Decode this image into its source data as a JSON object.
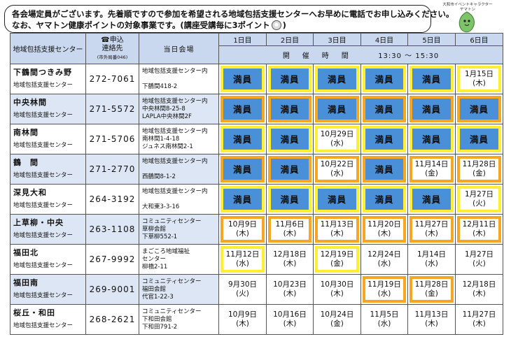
{
  "notice": {
    "line1": "各会場定員がございます。先着順ですので参加を希望される地域包括支援センターへお早めに電話でお申し込みください。",
    "line2": "なお、ヤマトン健康ポイントの対象事業です。(講座受講毎に3ポイント",
    "line2_end": ")"
  },
  "mascot": {
    "caption_line1": "大和市イベントキャラクター",
    "caption_line2": "ヤマトン"
  },
  "header": {
    "area": "地域包括支援センター",
    "contact_line1": "☎申込",
    "contact_line2": "連絡先",
    "contact_line3": "(市外局番046)",
    "venue": "当日会場",
    "days": [
      "1日目",
      "2日目",
      "3日目",
      "4日目",
      "5日目",
      "6日目"
    ],
    "time_label": "開　催　時　間",
    "time_value": "13:30 ～ 15:30"
  },
  "rows": [
    {
      "name": "下鶴間つきみ野",
      "sub": "地域包括支援センター",
      "tel": "272-7061",
      "venue": [
        "地域包括支援センター内",
        "",
        "下鶴間418-2"
      ],
      "cells": [
        {
          "t": "満員",
          "s": "full-y"
        },
        {
          "t": "満員",
          "s": "full-y"
        },
        {
          "t": "満員",
          "s": "full-y"
        },
        {
          "t": "満員",
          "s": "full-y"
        },
        {
          "t": "満員",
          "s": "full-y"
        },
        {
          "t": "1月15日",
          "t2": "(木)",
          "s": "date-y"
        }
      ]
    },
    {
      "name": "中央林間",
      "sub": "地域包括支援センター",
      "tel": "271-5572",
      "venue": [
        "地域包括支援センター内",
        "中央林間8-25-8",
        "LAPLA中央林間2F"
      ],
      "cells": [
        {
          "t": "満員",
          "s": "full-o"
        },
        {
          "t": "満員",
          "s": "full-o"
        },
        {
          "t": "満員",
          "s": "full-o"
        },
        {
          "t": "満員",
          "s": "full-o"
        },
        {
          "t": "満員",
          "s": "full-o"
        },
        {
          "t": "満員",
          "s": "full-o"
        }
      ]
    },
    {
      "name": "南林間",
      "sub": "地域包括支援センター",
      "tel": "271-5706",
      "venue": [
        "地域包括支援センター内",
        "南林間1-4-18",
        "ジュネス南林間2-1"
      ],
      "cells": [
        {
          "t": "満員",
          "s": "full-y"
        },
        {
          "t": "満員",
          "s": "full-y"
        },
        {
          "t": "10月29日",
          "t2": "(水)",
          "s": "date-y"
        },
        {
          "t": "満員",
          "s": "full-y"
        },
        {
          "t": "満員",
          "s": "full-y"
        },
        {
          "t": "満員",
          "s": "full-y"
        }
      ]
    },
    {
      "name": "鶴　間",
      "sub": "地域包括支援センター",
      "tel": "271-2770",
      "venue": [
        "地域包括支援センター内",
        "",
        "西鶴間8-1-2"
      ],
      "cells": [
        {
          "t": "満員",
          "s": "full-o"
        },
        {
          "t": "満員",
          "s": "full-o"
        },
        {
          "t": "10月22日",
          "t2": "(水)",
          "s": "date-o"
        },
        {
          "t": "満員",
          "s": "full-o"
        },
        {
          "t": "11月14日",
          "t2": "(金)",
          "s": "date-o"
        },
        {
          "t": "11月28日",
          "t2": "(金)",
          "s": "date-o"
        }
      ]
    },
    {
      "name": "深見大和",
      "sub": "地域包括支援センター",
      "tel": "264-3192",
      "venue": [
        "地域包括支援センター内",
        "",
        "大和東3-3-16"
      ],
      "cells": [
        {
          "t": "満員",
          "s": "full-y"
        },
        {
          "t": "満員",
          "s": "full-y"
        },
        {
          "t": "満員",
          "s": "full-y"
        },
        {
          "t": "満員",
          "s": "full-y"
        },
        {
          "t": "満員",
          "s": "full-y"
        },
        {
          "t": "1月27日",
          "t2": "(火)",
          "s": "date-y"
        }
      ]
    },
    {
      "name": "上草柳・中央",
      "sub": "地域包括支援センター",
      "tel": "263-1108",
      "venue": [
        "コミュニティセンター",
        "草柳会館",
        "下草柳552-1"
      ],
      "cells": [
        {
          "t": "10月9日",
          "t2": "(木)",
          "s": "date-o"
        },
        {
          "t": "11月6日",
          "t2": "(木)",
          "s": "date-o"
        },
        {
          "t": "11月13日",
          "t2": "(木)",
          "s": "date-o"
        },
        {
          "t": "11月20日",
          "t2": "(木)",
          "s": "date-o"
        },
        {
          "t": "11月27日",
          "t2": "(木)",
          "s": "date-o"
        },
        {
          "t": "12月11日",
          "t2": "(木)",
          "s": "date-o"
        }
      ]
    },
    {
      "name": "福田北",
      "sub": "地域包括支援センター",
      "tel": "267-9992",
      "venue": [
        "まごころ地域福祉",
        "センター",
        "柳橋2-11"
      ],
      "cells": [
        {
          "t": "11月12日",
          "t2": "(水)",
          "s": "date-y"
        },
        {
          "t": "12月18日",
          "t2": "(木)",
          "s": "plain"
        },
        {
          "t": "12月19日",
          "t2": "(金)",
          "s": "date-y"
        },
        {
          "t": "12月24日",
          "t2": "(水)",
          "s": "plain"
        },
        {
          "t": "1月14日",
          "t2": "(水)",
          "s": "plain"
        },
        {
          "t": "1月27日",
          "t2": "(火)",
          "s": "plain"
        }
      ]
    },
    {
      "name": "福田南",
      "sub": "地域包括支援センター",
      "tel": "269-9001",
      "venue": [
        "コミュニティセンター",
        "福田会館",
        "代官1-22-3"
      ],
      "cells": [
        {
          "t": "9月30日",
          "t2": "(火)",
          "s": "plain"
        },
        {
          "t": "10月23日",
          "t2": "(木)",
          "s": "plain"
        },
        {
          "t": "10月30日",
          "t2": "(木)",
          "s": "plain"
        },
        {
          "t": "11月19日",
          "t2": "(水)",
          "s": "date-o"
        },
        {
          "t": "11月28日",
          "t2": "(金)",
          "s": "date-o"
        },
        {
          "t": "12月18日",
          "t2": "(木)",
          "s": "plain"
        }
      ]
    },
    {
      "name": "桜丘・和田",
      "sub": "地域包括支援センター",
      "tel": "268-2621",
      "venue": [
        "コミュニティセンター",
        "下和田会館",
        "下和田791-2"
      ],
      "cells": [
        {
          "t": "10月9日",
          "t2": "(木)",
          "s": "plain"
        },
        {
          "t": "10月16日",
          "t2": "(木)",
          "s": "plain"
        },
        {
          "t": "10月24日",
          "t2": "(金)",
          "s": "plain"
        },
        {
          "t": "11月5日",
          "t2": "(水)",
          "s": "plain"
        },
        {
          "t": "11月13日",
          "t2": "(木)",
          "s": "plain"
        },
        {
          "t": "11月27日",
          "t2": "(木)",
          "s": "plain"
        }
      ]
    }
  ],
  "colors": {
    "full_blue": "#4a90d9",
    "highlight_yellow": "#ffee33",
    "highlight_orange": "#f5a623",
    "header_blue": "#c9d8ef",
    "row_shade": "#dde6f4"
  }
}
